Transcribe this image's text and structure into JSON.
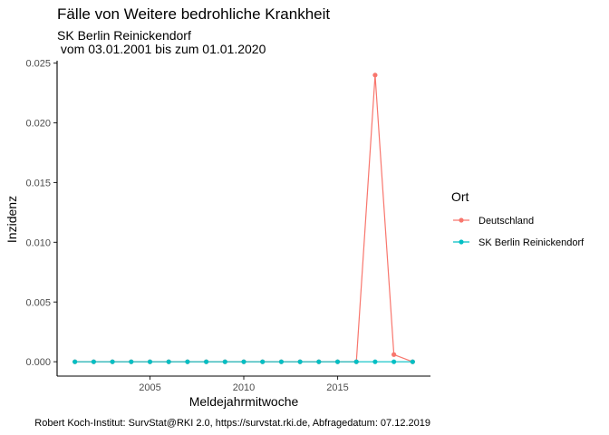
{
  "chart_data": {
    "type": "line",
    "title": "Fälle von Weitere bedrohliche Krankheit",
    "subtitle_line1": "SK Berlin Reinickendorf",
    "subtitle_line2": " vom 03.01.2001 bis zum 01.01.2020",
    "xlabel": "Meldejahrmitwoche",
    "ylabel": "Inzidenz",
    "caption": "Robert Koch-Institut: SurvStat@RKI 2.0, https://survstat.rki.de, Abfragedatum: 07.12.2019",
    "x": [
      2001,
      2002,
      2003,
      2004,
      2005,
      2006,
      2007,
      2008,
      2009,
      2010,
      2011,
      2012,
      2013,
      2014,
      2015,
      2016,
      2017,
      2018,
      2019
    ],
    "xlim": [
      2000.05,
      2019.95
    ],
    "ylim": [
      -0.0012,
      0.0252
    ],
    "x_ticks": [
      2005,
      2010,
      2015
    ],
    "x_tick_labels": [
      "2005",
      "2010",
      "2015"
    ],
    "y_ticks": [
      0,
      0.005,
      0.01,
      0.015,
      0.02,
      0.025
    ],
    "y_tick_labels": [
      "0.000",
      "0.005",
      "0.010",
      "0.015",
      "0.020",
      "0.025"
    ],
    "grid": false,
    "legend": {
      "title": "Ort",
      "placement": "right"
    },
    "series": [
      {
        "name": "Deutschland",
        "color": "#F8766D",
        "values": [
          0,
          0,
          0,
          0,
          0,
          0,
          0,
          0,
          0,
          0,
          0,
          0,
          0,
          0,
          0,
          0,
          0.024,
          0.0006,
          0
        ]
      },
      {
        "name": "SK Berlin Reinickendorf",
        "color": "#00BFC4",
        "values": [
          0,
          0,
          0,
          0,
          0,
          0,
          0,
          0,
          0,
          0,
          0,
          0,
          0,
          0,
          0,
          0,
          0,
          0,
          0
        ]
      }
    ]
  }
}
